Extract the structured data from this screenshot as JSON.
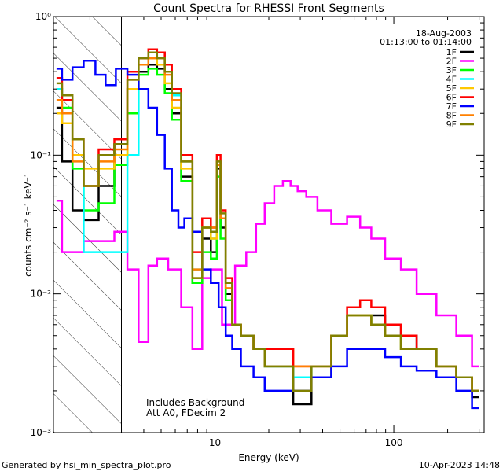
{
  "footer": {
    "left": "Generated by hsi_min_spectra_plot.pro",
    "right": "10-Apr-2023 14:48"
  },
  "chart_data": {
    "type": "line",
    "title": "Count Spectra for RHESSI Front Segments",
    "xlabel": "Energy (keV)",
    "ylabel": "counts cm⁻² s⁻¹ keV⁻¹",
    "xscale": "log",
    "yscale": "log",
    "xlim": [
      1.25,
      320
    ],
    "ylim": [
      0.001,
      1.0
    ],
    "x_tick_labels": [
      "10",
      "100"
    ],
    "y_tick_labels": [
      "10⁻³",
      "10⁻²",
      "10⁻¹",
      "10⁰"
    ],
    "grid": false,
    "date": "18-Aug-2003",
    "time_range": "01:13:00 to 01:14:00",
    "annotation_lines": [
      "Includes Background",
      "Att A0, FDecim 2"
    ],
    "shaded_region": {
      "x_from": 1.25,
      "x_to": 3.0,
      "style": "diagonal hatch"
    },
    "legend_position": "top-right",
    "series": [
      {
        "name": "1F",
        "color": "#000000",
        "x": [
          1.3,
          1.5,
          1.7,
          2.0,
          2.5,
          3.0,
          3.5,
          4.0,
          4.5,
          5.0,
          5.5,
          6.0,
          7.0,
          8.0,
          9.0,
          10.0,
          10.5,
          11.0,
          12.0,
          13.0,
          15.0,
          18.0,
          20.0,
          25.0,
          30.0,
          40.0,
          50.0,
          60.0,
          70.0,
          80.0,
          100.0,
          120.0,
          150.0,
          200.0,
          250.0,
          300.0
        ],
        "y": [
          0.22,
          0.09,
          0.04,
          0.034,
          0.06,
          0.12,
          0.3,
          0.4,
          0.45,
          0.42,
          0.3,
          0.2,
          0.07,
          0.012,
          0.025,
          0.02,
          0.08,
          0.03,
          0.01,
          0.006,
          0.005,
          0.004,
          0.003,
          0.003,
          0.0016,
          0.0025,
          0.005,
          0.007,
          0.007,
          0.007,
          0.006,
          0.005,
          0.004,
          0.003,
          0.0025,
          0.0018
        ]
      },
      {
        "name": "2F",
        "color": "#ff00ff",
        "x": [
          1.3,
          1.5,
          1.7,
          2.0,
          2.5,
          3.0,
          3.5,
          4.0,
          4.5,
          5.0,
          6.0,
          7.0,
          8.0,
          9.0,
          10.0,
          12.0,
          14.0,
          16.0,
          18.0,
          20.0,
          23.0,
          25.0,
          28.0,
          30.0,
          35.0,
          40.0,
          50.0,
          60.0,
          70.0,
          80.0,
          100.0,
          120.0,
          150.0,
          200.0,
          250.0,
          300.0
        ],
        "y": [
          0.047,
          0.02,
          0.02,
          0.024,
          0.024,
          0.028,
          0.015,
          0.0045,
          0.016,
          0.018,
          0.015,
          0.008,
          0.004,
          0.013,
          0.015,
          0.006,
          0.016,
          0.02,
          0.032,
          0.045,
          0.06,
          0.065,
          0.06,
          0.055,
          0.05,
          0.04,
          0.032,
          0.036,
          0.03,
          0.025,
          0.018,
          0.015,
          0.01,
          0.007,
          0.005,
          0.003
        ]
      },
      {
        "name": "3F",
        "color": "#00ff00",
        "x": [
          1.3,
          1.5,
          1.7,
          2.0,
          2.5,
          3.0,
          3.5,
          4.0,
          4.5,
          5.0,
          5.5,
          6.0,
          7.0,
          8.0,
          9.0,
          10.0,
          10.5,
          11.0,
          12.0,
          13.0,
          15.0,
          18.0,
          20.0,
          25.0,
          30.0,
          40.0,
          50.0,
          60.0,
          70.0,
          80.0,
          100.0,
          120.0,
          150.0,
          200.0,
          250.0,
          300.0
        ],
        "y": [
          0.3,
          0.22,
          0.08,
          0.04,
          0.045,
          0.085,
          0.2,
          0.38,
          0.42,
          0.38,
          0.28,
          0.18,
          0.065,
          0.012,
          0.02,
          0.018,
          0.07,
          0.025,
          0.009,
          0.006,
          0.005,
          0.004,
          0.003,
          0.003,
          0.0025,
          0.003,
          0.005,
          0.007,
          0.007,
          0.006,
          0.005,
          0.004,
          0.004,
          0.003,
          0.0025,
          0.002
        ]
      },
      {
        "name": "4F",
        "color": "#00ffff",
        "x": [
          1.3,
          1.5,
          1.7,
          2.0,
          2.5,
          3.0,
          3.5,
          4.0,
          4.5,
          5.0,
          5.5,
          6.0,
          7.0,
          8.0,
          9.0,
          10.0,
          10.5,
          11.0,
          12.0,
          13.0,
          15.0,
          18.0,
          20.0,
          25.0,
          30.0,
          40.0,
          50.0,
          60.0,
          70.0,
          80.0,
          100.0,
          120.0,
          150.0,
          200.0,
          250.0,
          300.0
        ],
        "y": [
          0.3,
          0.25,
          0.1,
          0.02,
          0.02,
          0.02,
          0.1,
          0.45,
          0.55,
          0.55,
          0.4,
          0.27,
          0.09,
          0.015,
          0.03,
          0.025,
          0.085,
          0.035,
          0.012,
          0.006,
          0.005,
          0.004,
          0.003,
          0.003,
          0.0025,
          0.003,
          0.005,
          0.007,
          0.007,
          0.006,
          0.005,
          0.004,
          0.004,
          0.003,
          0.0025,
          0.002
        ]
      },
      {
        "name": "5F",
        "color": "#ffc800",
        "x": [
          1.3,
          1.5,
          1.7,
          2.0,
          2.5,
          3.0,
          3.5,
          4.0,
          4.5,
          5.0,
          5.5,
          6.0,
          7.0,
          8.0,
          9.0,
          10.0,
          10.5,
          11.0,
          12.0,
          13.0,
          15.0,
          18.0,
          20.0,
          25.0,
          30.0,
          40.0,
          50.0,
          60.0,
          70.0,
          80.0,
          100.0,
          120.0,
          150.0,
          200.0,
          250.0,
          300.0
        ],
        "y": [
          0.2,
          0.17,
          0.1,
          0.08,
          0.08,
          0.1,
          0.3,
          0.5,
          0.5,
          0.45,
          0.33,
          0.22,
          0.08,
          0.013,
          0.03,
          0.025,
          0.09,
          0.035,
          0.012,
          0.006,
          0.005,
          0.004,
          0.004,
          0.004,
          0.003,
          0.003,
          0.005,
          0.007,
          0.007,
          0.006,
          0.005,
          0.004,
          0.004,
          0.003,
          0.0025,
          0.002
        ]
      },
      {
        "name": "6F",
        "color": "#ff0000",
        "x": [
          1.3,
          1.5,
          1.7,
          2.0,
          2.5,
          3.0,
          3.5,
          4.0,
          4.5,
          5.0,
          5.5,
          6.0,
          7.0,
          8.0,
          9.0,
          10.0,
          10.5,
          11.0,
          12.0,
          13.0,
          15.0,
          18.0,
          20.0,
          25.0,
          30.0,
          40.0,
          50.0,
          60.0,
          70.0,
          80.0,
          100.0,
          120.0,
          150.0,
          200.0,
          250.0,
          300.0
        ],
        "y": [
          0.36,
          0.25,
          0.13,
          0.06,
          0.11,
          0.13,
          0.4,
          0.5,
          0.58,
          0.55,
          0.45,
          0.3,
          0.1,
          0.02,
          0.035,
          0.03,
          0.1,
          0.04,
          0.013,
          0.006,
          0.005,
          0.004,
          0.004,
          0.004,
          0.003,
          0.003,
          0.005,
          0.008,
          0.009,
          0.008,
          0.006,
          0.005,
          0.004,
          0.003,
          0.0025,
          0.002
        ]
      },
      {
        "name": "7F",
        "color": "#0000ff",
        "x": [
          1.3,
          1.5,
          1.7,
          2.0,
          2.3,
          2.6,
          3.0,
          3.5,
          4.0,
          4.5,
          5.0,
          5.5,
          6.0,
          6.5,
          7.0,
          8.0,
          9.0,
          10.0,
          11.0,
          12.0,
          13.0,
          15.0,
          18.0,
          20.0,
          25.0,
          30.0,
          40.0,
          50.0,
          60.0,
          70.0,
          80.0,
          100.0,
          120.0,
          150.0,
          200.0,
          250.0,
          300.0
        ],
        "y": [
          0.42,
          0.35,
          0.43,
          0.48,
          0.38,
          0.32,
          0.42,
          0.38,
          0.3,
          0.22,
          0.14,
          0.08,
          0.04,
          0.03,
          0.035,
          0.028,
          0.015,
          0.012,
          0.008,
          0.005,
          0.004,
          0.003,
          0.0025,
          0.002,
          0.002,
          0.002,
          0.0025,
          0.003,
          0.004,
          0.004,
          0.004,
          0.0035,
          0.003,
          0.0028,
          0.0025,
          0.002,
          0.0015
        ]
      },
      {
        "name": "8F",
        "color": "#ff8000",
        "x": [
          1.3,
          1.5,
          1.7,
          2.0,
          2.5,
          3.0,
          3.5,
          4.0,
          4.5,
          5.0,
          5.5,
          6.0,
          7.0,
          8.0,
          9.0,
          10.0,
          10.5,
          11.0,
          12.0,
          13.0,
          15.0,
          18.0,
          20.0,
          25.0,
          30.0,
          40.0,
          50.0,
          60.0,
          70.0,
          80.0,
          100.0,
          120.0,
          150.0,
          200.0,
          250.0,
          300.0
        ],
        "y": [
          0.25,
          0.2,
          0.09,
          0.06,
          0.09,
          0.11,
          0.35,
          0.45,
          0.5,
          0.5,
          0.38,
          0.25,
          0.09,
          0.015,
          0.03,
          0.03,
          0.085,
          0.035,
          0.011,
          0.006,
          0.005,
          0.004,
          0.003,
          0.003,
          0.003,
          0.003,
          0.005,
          0.007,
          0.007,
          0.006,
          0.005,
          0.004,
          0.004,
          0.003,
          0.0025,
          0.002
        ]
      },
      {
        "name": "9F",
        "color": "#808000",
        "x": [
          1.3,
          1.5,
          1.7,
          2.0,
          2.5,
          3.0,
          3.5,
          4.0,
          4.5,
          5.0,
          5.5,
          6.0,
          7.0,
          8.0,
          9.0,
          10.0,
          10.5,
          11.0,
          12.0,
          13.0,
          15.0,
          18.0,
          20.0,
          25.0,
          30.0,
          40.0,
          50.0,
          60.0,
          70.0,
          80.0,
          100.0,
          120.0,
          150.0,
          200.0,
          250.0,
          300.0
        ],
        "y": [
          0.33,
          0.27,
          0.13,
          0.06,
          0.1,
          0.12,
          0.35,
          0.5,
          0.55,
          0.5,
          0.4,
          0.28,
          0.09,
          0.013,
          0.03,
          0.028,
          0.09,
          0.038,
          0.012,
          0.006,
          0.005,
          0.004,
          0.003,
          0.003,
          0.002,
          0.003,
          0.005,
          0.007,
          0.007,
          0.006,
          0.005,
          0.004,
          0.004,
          0.003,
          0.0025,
          0.002
        ]
      }
    ]
  }
}
